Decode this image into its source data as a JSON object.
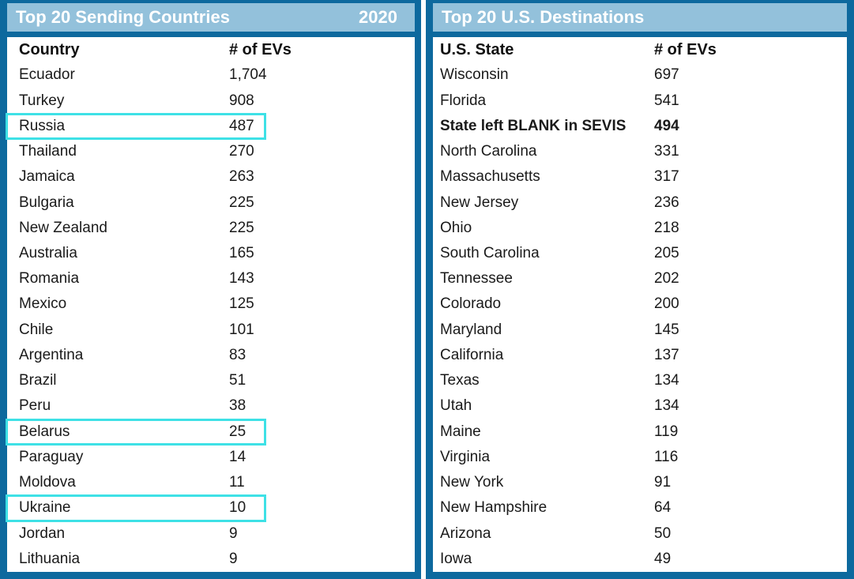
{
  "colors": {
    "border_blue": "#0d699e",
    "header_blue": "#93c1db",
    "highlight_cyan": "#3ee1e6",
    "header_text": "#ffffff",
    "body_text": "#1a1a1a"
  },
  "tables": [
    {
      "title": "Top 20 Sending Countries",
      "year": "2020",
      "columns": [
        "Country",
        "# of EVs"
      ],
      "rows": [
        {
          "label": "Ecuador",
          "value": "1,704"
        },
        {
          "label": "Turkey",
          "value": "908"
        },
        {
          "label": "Russia",
          "value": "487",
          "highlight": true
        },
        {
          "label": "Thailand",
          "value": "270"
        },
        {
          "label": "Jamaica",
          "value": "263"
        },
        {
          "label": "Bulgaria",
          "value": "225"
        },
        {
          "label": "New Zealand",
          "value": "225"
        },
        {
          "label": "Australia",
          "value": "165"
        },
        {
          "label": "Romania",
          "value": "143"
        },
        {
          "label": "Mexico",
          "value": "125"
        },
        {
          "label": "Chile",
          "value": "101"
        },
        {
          "label": "Argentina",
          "value": "83"
        },
        {
          "label": "Brazil",
          "value": "51"
        },
        {
          "label": "Peru",
          "value": "38"
        },
        {
          "label": "Belarus",
          "value": "25",
          "highlight": true
        },
        {
          "label": "Paraguay",
          "value": "14"
        },
        {
          "label": "Moldova",
          "value": "11"
        },
        {
          "label": "Ukraine",
          "value": "10",
          "highlight": true
        },
        {
          "label": "Jordan",
          "value": "9"
        },
        {
          "label": "Lithuania",
          "value": "9"
        }
      ]
    },
    {
      "title": "Top 20 U.S. Destinations",
      "columns": [
        "U.S. State",
        "# of EVs"
      ],
      "rows": [
        {
          "label": "Wisconsin",
          "value": "697"
        },
        {
          "label": "Florida",
          "value": "541"
        },
        {
          "label": "State left BLANK in SEVIS",
          "value": "494",
          "bold": true
        },
        {
          "label": "North Carolina",
          "value": "331"
        },
        {
          "label": "Massachusetts",
          "value": "317"
        },
        {
          "label": "New Jersey",
          "value": "236"
        },
        {
          "label": "Ohio",
          "value": "218"
        },
        {
          "label": "South Carolina",
          "value": "205"
        },
        {
          "label": "Tennessee",
          "value": "202"
        },
        {
          "label": "Colorado",
          "value": "200"
        },
        {
          "label": "Maryland",
          "value": "145"
        },
        {
          "label": "California",
          "value": "137"
        },
        {
          "label": "Texas",
          "value": "134"
        },
        {
          "label": "Utah",
          "value": "134"
        },
        {
          "label": "Maine",
          "value": "119"
        },
        {
          "label": "Virginia",
          "value": "116"
        },
        {
          "label": "New York",
          "value": "91"
        },
        {
          "label": "New Hampshire",
          "value": "64"
        },
        {
          "label": "Arizona",
          "value": "50"
        },
        {
          "label": "Iowa",
          "value": "49"
        }
      ]
    }
  ],
  "chart_data": [
    {
      "type": "table",
      "title": "Top 20 Sending Countries",
      "subtitle": "2020",
      "columns": [
        "Country",
        "# of EVs"
      ],
      "categories": [
        "Ecuador",
        "Turkey",
        "Russia",
        "Thailand",
        "Jamaica",
        "Bulgaria",
        "New Zealand",
        "Australia",
        "Romania",
        "Mexico",
        "Chile",
        "Argentina",
        "Brazil",
        "Peru",
        "Belarus",
        "Paraguay",
        "Moldova",
        "Ukraine",
        "Jordan",
        "Lithuania"
      ],
      "values": [
        1704,
        908,
        487,
        270,
        263,
        225,
        225,
        165,
        143,
        125,
        101,
        83,
        51,
        38,
        25,
        14,
        11,
        10,
        9,
        9
      ],
      "annotations": [
        "Russia, Belarus and Ukraine rows outlined in cyan"
      ]
    },
    {
      "type": "table",
      "title": "Top 20 U.S. Destinations",
      "columns": [
        "U.S. State",
        "# of EVs"
      ],
      "categories": [
        "Wisconsin",
        "Florida",
        "State left BLANK in SEVIS",
        "North Carolina",
        "Massachusetts",
        "New Jersey",
        "Ohio",
        "South Carolina",
        "Tennessee",
        "Colorado",
        "Maryland",
        "California",
        "Texas",
        "Utah",
        "Maine",
        "Virginia",
        "New York",
        "New Hampshire",
        "Arizona",
        "Iowa"
      ],
      "values": [
        697,
        541,
        494,
        331,
        317,
        236,
        218,
        205,
        202,
        200,
        145,
        137,
        134,
        134,
        119,
        116,
        91,
        64,
        50,
        49
      ],
      "annotations": [
        "State left BLANK in SEVIS row shown in bold"
      ]
    }
  ]
}
